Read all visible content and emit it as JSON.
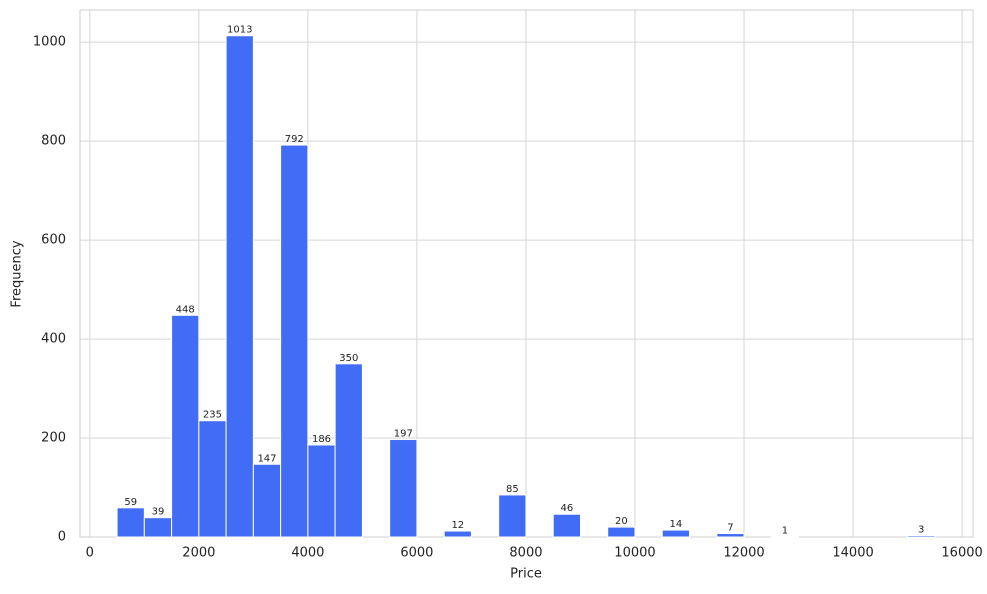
{
  "chart_data": {
    "type": "histogram",
    "x_label": "Price",
    "y_label": "Frequency",
    "bins": [
      500,
      1000,
      1500,
      2000,
      2500,
      3000,
      3500,
      4000,
      4500,
      5000,
      5500,
      6000,
      6500,
      7000,
      7500,
      8000,
      8500,
      9000,
      9500,
      10000,
      10500,
      11000,
      11500,
      12000,
      12500,
      13000,
      13500,
      14000,
      14500,
      15000,
      15500
    ],
    "values": [
      59,
      39,
      448,
      235,
      1013,
      147,
      792,
      186,
      350,
      0,
      197,
      0,
      12,
      0,
      85,
      0,
      46,
      0,
      20,
      0,
      14,
      0,
      7,
      0,
      1,
      0,
      0,
      0,
      0,
      3
    ],
    "color": "#416cf5",
    "xlim": [
      -180,
      16200
    ],
    "ylim": [
      0,
      1065
    ],
    "xticks": [
      0,
      2000,
      4000,
      6000,
      8000,
      10000,
      12000,
      14000,
      16000
    ],
    "yticks": [
      0,
      200,
      400,
      600,
      800,
      1000
    ],
    "grid": true
  }
}
